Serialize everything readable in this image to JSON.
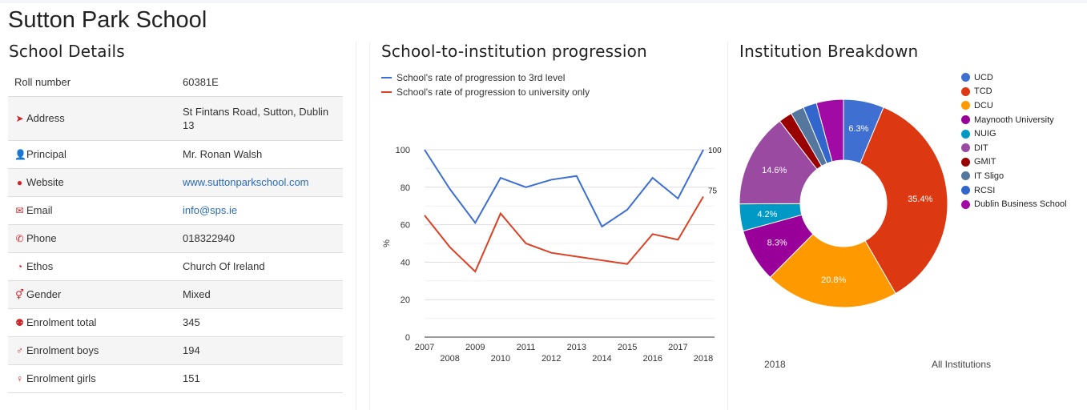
{
  "page": {
    "title": "Sutton Park School"
  },
  "details": {
    "heading": "School Details",
    "rows": [
      {
        "icon": "",
        "label": "Roll number",
        "value": "60381E"
      },
      {
        "icon": "location-arrow-icon",
        "label": "Address",
        "value": "St Fintans Road, Sutton, Dublin 13"
      },
      {
        "icon": "user-icon",
        "label": "Principal",
        "value": "Mr. Ronan Walsh"
      },
      {
        "icon": "globe-icon",
        "label": "Website",
        "value": "www.suttonparkschool.com"
      },
      {
        "icon": "envelope-icon",
        "label": "Email",
        "value": "info@sps.ie"
      },
      {
        "icon": "phone-icon",
        "label": "Phone",
        "value": "018322940"
      },
      {
        "icon": "ethos-icon",
        "label": "Ethos",
        "value": "Church Of Ireland"
      },
      {
        "icon": "gender-icon",
        "label": "Gender",
        "value": "Mixed"
      },
      {
        "icon": "users-icon",
        "label": "Enrolment total",
        "value": "345"
      },
      {
        "icon": "male-icon",
        "label": "Enrolment boys",
        "value": "194"
      },
      {
        "icon": "female-icon",
        "label": "Enrolment girls",
        "value": "151"
      }
    ]
  },
  "progression": {
    "heading": "School-to-institution progression",
    "legend": [
      {
        "label": "School's rate of progression to 3rd level",
        "color": "#3c6fd5"
      },
      {
        "label": "School's rate of progression to university only",
        "color": "#db4125"
      }
    ]
  },
  "breakdown": {
    "heading": "Institution Breakdown",
    "footer_left": "2018",
    "footer_right": "All Institutions"
  },
  "chart_data": [
    {
      "type": "line",
      "x": [
        2007,
        2008,
        2009,
        2010,
        2011,
        2012,
        2013,
        2014,
        2015,
        2016,
        2017,
        2018
      ],
      "xlabel": "",
      "ylabel": "%",
      "ylim": [
        0,
        100
      ],
      "yticks": [
        0,
        20,
        40,
        60,
        80,
        100
      ],
      "series": [
        {
          "name": "School's rate of progression to 3rd level",
          "color": "#3c6fd5",
          "values": [
            100,
            79,
            61,
            85,
            80,
            84,
            86,
            59,
            68,
            85,
            74,
            100
          ],
          "end_label": "100"
        },
        {
          "name": "School's rate of progression to university only",
          "color": "#db4125",
          "values": [
            65,
            48,
            35,
            66,
            50,
            45,
            43,
            41,
            39,
            55,
            52,
            75
          ],
          "end_label": "75"
        }
      ],
      "grid": true,
      "legend": "top-left"
    },
    {
      "type": "pie",
      "donut": true,
      "start_angle_deg": 0,
      "slices": [
        {
          "label": "UCD",
          "value": 6.3,
          "color": "#3f6fd0",
          "text": "6.3%"
        },
        {
          "label": "TCD",
          "value": 35.4,
          "color": "#dc3912",
          "text": "35.4%"
        },
        {
          "label": "DCU",
          "value": 20.8,
          "color": "#ff9900",
          "text": "20.8%"
        },
        {
          "label": "Maynooth University",
          "value": 8.3,
          "color": "#990099",
          "text": "8.3%"
        },
        {
          "label": "NUIG",
          "value": 4.2,
          "color": "#0099c6",
          "text": "4.2%"
        },
        {
          "label": "DIT",
          "value": 14.6,
          "color": "#9a4ba1",
          "text": "14.6%"
        },
        {
          "label": "GMIT",
          "value": 2.1,
          "color": "#990000",
          "text": ""
        },
        {
          "label": "IT Sligo",
          "value": 2.1,
          "color": "#55779e",
          "text": ""
        },
        {
          "label": "RCSI",
          "value": 2.1,
          "color": "#3366cc",
          "text": ""
        },
        {
          "label": "Dublin Business School",
          "value": 4.2,
          "color": "#a20aa6",
          "text": ""
        }
      ],
      "legend": "right"
    }
  ]
}
